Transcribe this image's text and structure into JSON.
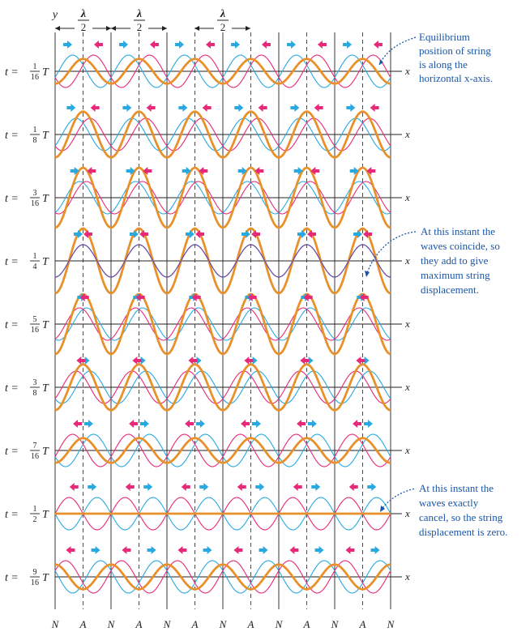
{
  "header": {
    "y_axis_label": "y",
    "lambda_symbol": "λ",
    "lambda_denominator": "2"
  },
  "rows": [
    {
      "t_prefix": "t =",
      "numerator": "1",
      "denominator": "16",
      "t_suffix": "T",
      "phase": 0.0625,
      "x_label": "x"
    },
    {
      "t_prefix": "t =",
      "numerator": "1",
      "denominator": "8",
      "t_suffix": "T",
      "phase": 0.125,
      "x_label": "x"
    },
    {
      "t_prefix": "t =",
      "numerator": "3",
      "denominator": "16",
      "t_suffix": "T",
      "phase": 0.1875,
      "x_label": "x"
    },
    {
      "t_prefix": "t =",
      "numerator": "1",
      "denominator": "4",
      "t_suffix": "T",
      "phase": 0.25,
      "x_label": "x"
    },
    {
      "t_prefix": "t =",
      "numerator": "5",
      "denominator": "16",
      "t_suffix": "T",
      "phase": 0.3125,
      "x_label": "x"
    },
    {
      "t_prefix": "t =",
      "numerator": "3",
      "denominator": "8",
      "t_suffix": "T",
      "phase": 0.375,
      "x_label": "x"
    },
    {
      "t_prefix": "t =",
      "numerator": "7",
      "denominator": "16",
      "t_suffix": "T",
      "phase": 0.4375,
      "x_label": "x"
    },
    {
      "t_prefix": "t =",
      "numerator": "1",
      "denominator": "2",
      "t_suffix": "T",
      "phase": 0.5,
      "x_label": "x"
    },
    {
      "t_prefix": "t =",
      "numerator": "9",
      "denominator": "16",
      "t_suffix": "T",
      "phase": 0.5625,
      "x_label": "x"
    }
  ],
  "bottom_labels": [
    "N",
    "A",
    "N",
    "A",
    "N",
    "A",
    "N",
    "A",
    "N",
    "A",
    "N",
    "A",
    "N"
  ],
  "annotations": [
    {
      "lines": [
        "Equilibrium",
        "position of string",
        "is along the",
        "horizontal x-axis."
      ]
    },
    {
      "lines": [
        "At this instant the",
        "waves coincide, so",
        "they add to give",
        "maximum string",
        "displacement."
      ]
    },
    {
      "lines": [
        "At this instant the",
        "waves exactly",
        "cancel, so the string",
        "displacement is zero."
      ]
    }
  ],
  "colors": {
    "wave_right": "#29a9e0",
    "wave_left": "#e8297a",
    "resultant": "#e8912a",
    "coincide": "#6a4fa8",
    "axis": "#231f20",
    "annotation": "#1a56a8"
  }
}
